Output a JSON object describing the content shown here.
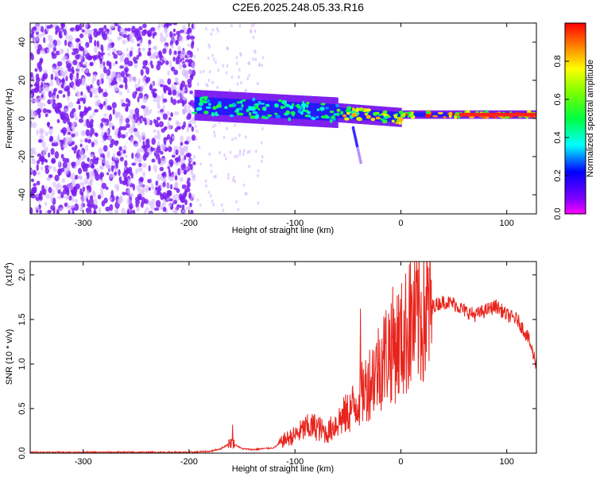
{
  "title": "C2E6.2025.248.05.33.R16",
  "colors": {
    "snr_line": "#e8241c",
    "axis": "#000000",
    "low_amp": "#7f00ff",
    "high_amp": "#ff0000"
  },
  "chart_data": [
    {
      "type": "heatmap",
      "title": "C2E6.2025.248.05.33.R16",
      "xlabel": "Height of straight line (km)",
      "ylabel": "Frequency (Hz)",
      "xlim": [
        -350,
        128
      ],
      "ylim": [
        -50,
        50
      ],
      "x_ticks": [
        -300,
        -200,
        -100,
        0,
        100
      ],
      "x_tick_labels": [
        "-300",
        "-200",
        "-100",
        "0",
        "100"
      ],
      "y_ticks": [
        -40,
        -20,
        0,
        20,
        40
      ],
      "y_tick_labels": [
        "-40",
        "-20",
        "0",
        "20",
        "40"
      ],
      "colorbar": {
        "label": "Normalized spectral amplitude",
        "range": [
          0,
          1
        ],
        "ticks": [
          0.0,
          0.2,
          0.4,
          0.6,
          0.8
        ],
        "tick_labels": [
          "0.0",
          "0.2",
          "0.4",
          "0.6",
          "0.8"
        ],
        "colormap": "rainbow (violet → red)"
      },
      "regions": [
        {
          "x_range": [
            -350,
            -195
          ],
          "freq_range": [
            -50,
            50
          ],
          "amplitude": "low, noisy"
        },
        {
          "x_range": [
            -195,
            -60
          ],
          "freq_center": 5,
          "freq_halfwidth": 8,
          "amplitude": "medium"
        },
        {
          "x_range": [
            -60,
            0
          ],
          "freq_center": 0,
          "freq_halfwidth": 3,
          "amplitude": "medium-high"
        },
        {
          "x_range": [
            0,
            128
          ],
          "freq_center": 2,
          "freq_halfwidth": 1.5,
          "amplitude": "high"
        }
      ]
    },
    {
      "type": "line",
      "xlabel": "Height of straight line (km)",
      "ylabel": "SNR (10 * v/v)",
      "y_multiplier": "(x10",
      "y_multiplier_exp": "4",
      "xlim": [
        -350,
        128
      ],
      "ylim": [
        0,
        2.15
      ],
      "x_ticks": [
        -300,
        -200,
        -100,
        0,
        100
      ],
      "x_tick_labels": [
        "-300",
        "-200",
        "-100",
        "0",
        "100"
      ],
      "y_ticks": [
        0.0,
        0.5,
        1.0,
        1.5,
        2.0
      ],
      "y_tick_labels": [
        "0.0",
        "0.5",
        "1.0",
        "1.5",
        "2.0"
      ],
      "series": [
        {
          "x": [
            -350,
            -300,
            -250,
            -200,
            -180,
            -170,
            -160,
            -150,
            -140,
            -120,
            -110,
            -100,
            -90,
            -80,
            -70,
            -60,
            -50,
            -40,
            -30,
            -20,
            -10,
            0,
            10,
            20,
            30,
            40,
            50,
            60,
            70,
            80,
            90,
            100,
            110,
            120,
            128
          ],
          "values": [
            0.01,
            0.01,
            0.01,
            0.01,
            0.02,
            0.05,
            0.12,
            0.05,
            0.04,
            0.06,
            0.15,
            0.2,
            0.28,
            0.3,
            0.22,
            0.35,
            0.45,
            0.6,
            0.8,
            1.0,
            1.2,
            1.25,
            1.45,
            1.55,
            1.65,
            1.7,
            1.68,
            1.6,
            1.55,
            1.6,
            1.65,
            1.55,
            1.5,
            1.3,
            1.0
          ],
          "spikes": [
            {
              "x": 8,
              "value": 2.12
            },
            {
              "x": -38,
              "value": 1.62
            },
            {
              "x": -159,
              "value": 0.32
            }
          ]
        }
      ]
    }
  ]
}
